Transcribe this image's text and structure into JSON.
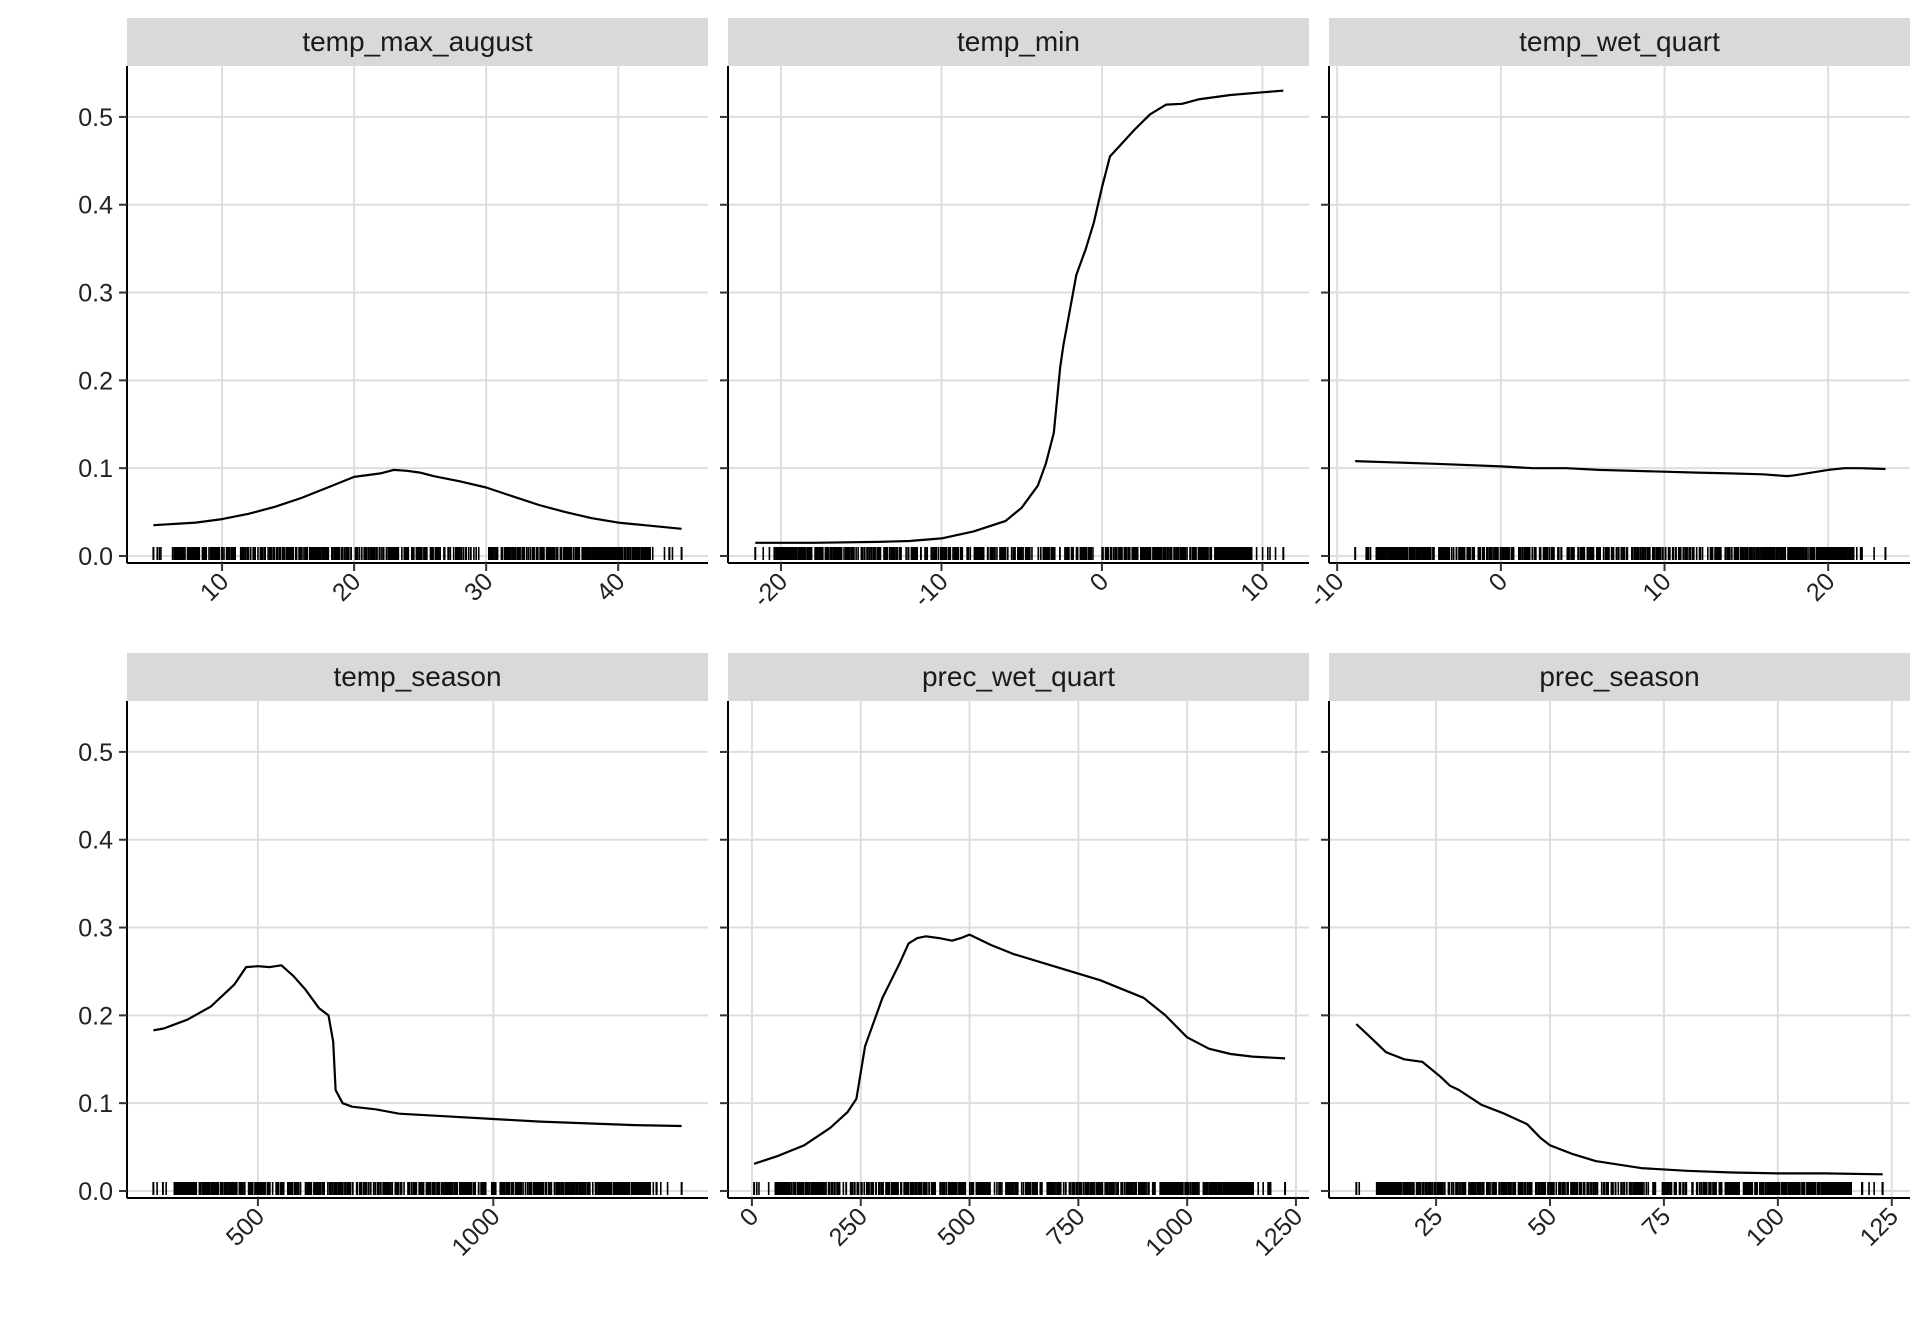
{
  "chart_data": [
    {
      "type": "line",
      "title": "temp_max_august",
      "xlim": [
        2.8,
        46.8
      ],
      "xticks": [
        10,
        20,
        30,
        40
      ],
      "ylim": [
        -0.008,
        0.558
      ],
      "yticks": [
        0.0,
        0.1,
        0.2,
        0.3,
        0.4,
        0.5
      ],
      "rug_range": [
        4.8,
        44.8
      ],
      "x": [
        4.8,
        8,
        10,
        12,
        14,
        16,
        18,
        20,
        22,
        23,
        24,
        25,
        26,
        27,
        28,
        30,
        32,
        34,
        36,
        38,
        40,
        42,
        44.8
      ],
      "y": [
        0.035,
        0.038,
        0.042,
        0.048,
        0.056,
        0.066,
        0.078,
        0.09,
        0.094,
        0.098,
        0.097,
        0.095,
        0.091,
        0.088,
        0.085,
        0.078,
        0.068,
        0.058,
        0.05,
        0.043,
        0.038,
        0.035,
        0.031
      ]
    },
    {
      "type": "line",
      "title": "temp_min",
      "xlim": [
        -23.3,
        12.9
      ],
      "xticks": [
        -20,
        -10,
        0,
        10
      ],
      "ylim": [
        -0.008,
        0.558
      ],
      "yticks": [
        0.0,
        0.1,
        0.2,
        0.3,
        0.4,
        0.5
      ],
      "rug_range": [
        -21.6,
        11.3
      ],
      "x": [
        -21.6,
        -18,
        -14,
        -12,
        -10,
        -8,
        -6,
        -5,
        -4,
        -3.5,
        -3,
        -2.6,
        -2.4,
        -2,
        -1.6,
        -1,
        -0.5,
        0,
        0.5,
        1,
        2,
        3,
        4,
        5,
        6,
        8,
        10,
        11.3
      ],
      "y": [
        0.015,
        0.015,
        0.016,
        0.017,
        0.02,
        0.028,
        0.04,
        0.055,
        0.08,
        0.105,
        0.14,
        0.215,
        0.24,
        0.28,
        0.32,
        0.35,
        0.38,
        0.42,
        0.455,
        0.465,
        0.485,
        0.503,
        0.514,
        0.515,
        0.52,
        0.525,
        0.528,
        0.53
      ]
    },
    {
      "type": "line",
      "title": "temp_wet_quart",
      "xlim": [
        -10.5,
        25
      ],
      "xticks": [
        -10,
        0,
        10,
        20
      ],
      "ylim": [
        -0.008,
        0.558
      ],
      "yticks": [
        0.0,
        0.1,
        0.2,
        0.3,
        0.4,
        0.5
      ],
      "rug_range": [
        -8.9,
        23.5
      ],
      "x": [
        -8.9,
        -4,
        0,
        2,
        4,
        6,
        8,
        10,
        12,
        14,
        16,
        17.5,
        18,
        19,
        20,
        21,
        22,
        23.5
      ],
      "y": [
        0.108,
        0.105,
        0.102,
        0.1,
        0.1,
        0.098,
        0.097,
        0.096,
        0.095,
        0.094,
        0.093,
        0.091,
        0.092,
        0.095,
        0.098,
        0.1,
        0.1,
        0.099
      ]
    },
    {
      "type": "line",
      "title": "temp_season",
      "xlim": [
        222,
        1456
      ],
      "xticks": [
        500,
        1000
      ],
      "ylim": [
        -0.008,
        0.558
      ],
      "yticks": [
        0.0,
        0.1,
        0.2,
        0.3,
        0.4,
        0.5
      ],
      "rug_range": [
        278,
        1400
      ],
      "x": [
        278,
        300,
        350,
        400,
        450,
        475,
        500,
        525,
        550,
        575,
        600,
        630,
        650,
        660,
        665,
        680,
        700,
        750,
        800,
        900,
        1000,
        1100,
        1200,
        1300,
        1400
      ],
      "y": [
        0.183,
        0.185,
        0.195,
        0.21,
        0.235,
        0.255,
        0.256,
        0.255,
        0.257,
        0.245,
        0.23,
        0.208,
        0.2,
        0.17,
        0.115,
        0.1,
        0.096,
        0.093,
        0.088,
        0.085,
        0.082,
        0.079,
        0.077,
        0.075,
        0.074
      ]
    },
    {
      "type": "line",
      "title": "prec_wet_quart",
      "xlim": [
        -55,
        1280
      ],
      "xticks": [
        0,
        250,
        500,
        750,
        1000,
        1250
      ],
      "ylim": [
        -0.008,
        0.558
      ],
      "yticks": [
        0.0,
        0.1,
        0.2,
        0.3,
        0.4,
        0.5
      ],
      "rug_range": [
        5,
        1225
      ],
      "x": [
        5,
        60,
        120,
        180,
        220,
        240,
        260,
        300,
        340,
        360,
        380,
        400,
        430,
        460,
        480,
        500,
        550,
        600,
        700,
        800,
        900,
        950,
        1000,
        1050,
        1100,
        1150,
        1225
      ],
      "y": [
        0.031,
        0.04,
        0.052,
        0.072,
        0.09,
        0.105,
        0.165,
        0.22,
        0.26,
        0.282,
        0.288,
        0.29,
        0.288,
        0.285,
        0.288,
        0.292,
        0.28,
        0.27,
        0.255,
        0.24,
        0.22,
        0.2,
        0.175,
        0.162,
        0.156,
        0.153,
        0.151
      ]
    },
    {
      "type": "line",
      "title": "prec_season",
      "xlim": [
        1.5,
        129
      ],
      "xticks": [
        25,
        50,
        75,
        100,
        125
      ],
      "ylim": [
        -0.008,
        0.558
      ],
      "yticks": [
        0.0,
        0.1,
        0.2,
        0.3,
        0.4,
        0.5
      ],
      "rug_range": [
        7.5,
        123
      ],
      "x": [
        7.5,
        10,
        14,
        18,
        22,
        26,
        28,
        30,
        35,
        40,
        45,
        48,
        50,
        55,
        60,
        70,
        80,
        90,
        100,
        110,
        123
      ],
      "y": [
        0.19,
        0.178,
        0.158,
        0.15,
        0.147,
        0.13,
        0.12,
        0.115,
        0.098,
        0.088,
        0.076,
        0.06,
        0.052,
        0.042,
        0.034,
        0.026,
        0.023,
        0.021,
        0.02,
        0.02,
        0.019
      ]
    }
  ]
}
